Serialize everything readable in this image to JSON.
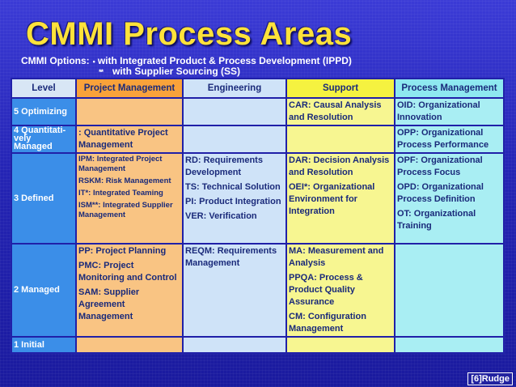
{
  "title": "CMMI Process Areas",
  "options": {
    "label": "CMMI Options:",
    "bullet1": "•",
    "text1": "with Integrated Product & Process Development (IPPD)",
    "bullet2": "**",
    "text2": "with Supplier Sourcing (SS)"
  },
  "headers": {
    "level": "Level",
    "pm": "Project Management",
    "eng": "Engineering",
    "sup": "Support",
    "proc": "Process Management"
  },
  "levels": {
    "l5": "5 Optimizing",
    "l4a": "4 Quantitati-",
    "l4b": "vely",
    "l4c": "Managed",
    "l3": "3 Defined",
    "l2": "2 Managed",
    "l1": "1 Initial"
  },
  "cells": {
    "l5_sup": "CAR: Causal Analysis and Resolution",
    "l5_proc": "OID: Organizational Innovation",
    "l4_pm": ": Quantitative Project Management",
    "l4_proc": "OPP: Organizational Process Performance",
    "l3_pm_1": "IPM: Integrated Project Management",
    "l3_pm_2": "RSKM: Risk Management",
    "l3_pm_3": "IT*: Integrated Teaming",
    "l3_pm_4": "ISM**: Integrated Supplier Management",
    "l3_eng_1": "RD: Requirements Development",
    "l3_eng_2": "TS: Technical Solution",
    "l3_eng_3": "PI: Product Integration",
    "l3_eng_4": "VER: Verification",
    "l3_sup_1": "DAR: Decision Analysis and Resolution",
    "l3_sup_2": "OEI*: Organizational Environment for Integration",
    "l3_proc_1": "OPF: Organizational Process Focus",
    "l3_proc_2": "OPD: Organizational Process Definition",
    "l3_proc_3": "OT: Organizational Training",
    "l2_pm_1": "PP: Project Planning",
    "l2_pm_2": "PMC: Project Monitoring and Control",
    "l2_pm_3": "SAM: Supplier Agreement Management",
    "l2_eng_1": "REQM: Requirements Management",
    "l2_sup_1": "MA: Measurement and Analysis",
    "l2_sup_2": "PPQA: Process & Product Quality Assurance",
    "l2_sup_3": "CM: Configuration Management"
  },
  "footer": "[6]Rudge",
  "colors": {
    "title": "#ffe23a",
    "level_col": "#3b8ee8",
    "project_mgmt": "#f9c483",
    "engineering": "#cfe3f8",
    "support": "#f7f691",
    "process_mgmt": "#a9eef3"
  }
}
